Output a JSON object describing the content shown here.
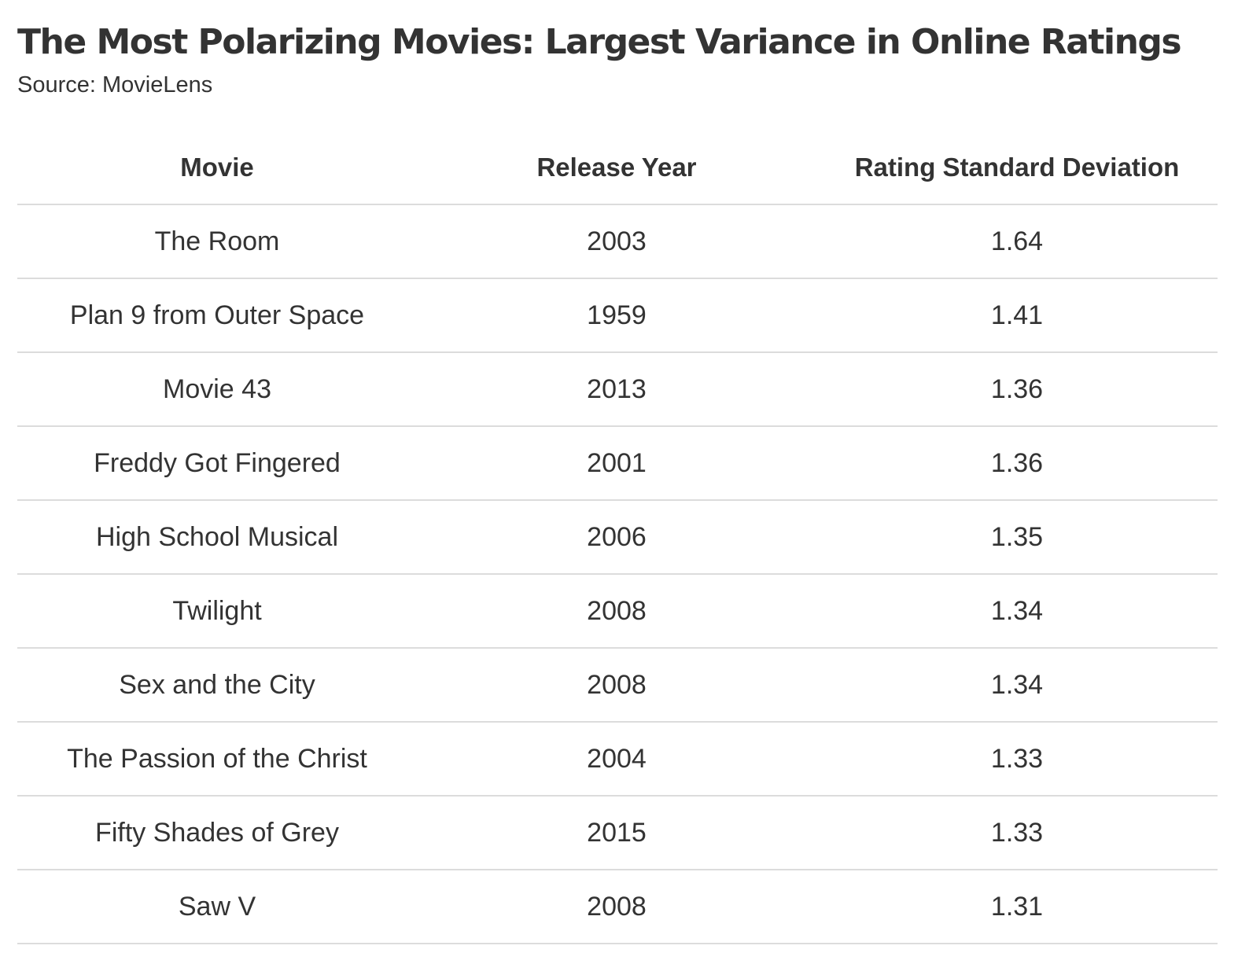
{
  "chart_data": {
    "type": "table",
    "title": "The Most Polarizing Movies: Largest Variance in Online Ratings",
    "subtitle": "Source: MovieLens",
    "columns": [
      "Movie",
      "Release Year",
      "Rating Standard Deviation"
    ],
    "rows": [
      {
        "movie": "The Room",
        "year": "2003",
        "sd": "1.64"
      },
      {
        "movie": "Plan 9 from Outer Space",
        "year": "1959",
        "sd": "1.41"
      },
      {
        "movie": "Movie 43",
        "year": "2013",
        "sd": "1.36"
      },
      {
        "movie": "Freddy Got Fingered",
        "year": "2001",
        "sd": "1.36"
      },
      {
        "movie": "High School Musical",
        "year": "2006",
        "sd": "1.35"
      },
      {
        "movie": "Twilight",
        "year": "2008",
        "sd": "1.34"
      },
      {
        "movie": "Sex and the City",
        "year": "2008",
        "sd": "1.34"
      },
      {
        "movie": "The Passion of the Christ",
        "year": "2004",
        "sd": "1.33"
      },
      {
        "movie": "Fifty Shades of Grey",
        "year": "2015",
        "sd": "1.33"
      },
      {
        "movie": "Saw V",
        "year": "2008",
        "sd": "1.31"
      }
    ]
  },
  "colors": {
    "text": "#333333",
    "rule": "#dcdcdc",
    "background": "#ffffff"
  }
}
